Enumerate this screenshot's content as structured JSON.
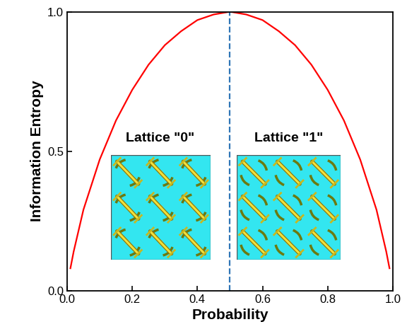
{
  "chart_data": {
    "type": "line",
    "x_label": "Probability",
    "y_label": "Information Entropy",
    "x": [
      0.01,
      0.02,
      0.05,
      0.1,
      0.15,
      0.2,
      0.25,
      0.3,
      0.35,
      0.4,
      0.45,
      0.5,
      0.55,
      0.6,
      0.65,
      0.7,
      0.75,
      0.8,
      0.85,
      0.9,
      0.95,
      0.98,
      0.99
    ],
    "series": [
      {
        "name": "Information Entropy",
        "color": "#ff0000",
        "line_style": "solid",
        "values": [
          0.08,
          0.14,
          0.29,
          0.47,
          0.61,
          0.72,
          0.81,
          0.88,
          0.93,
          0.97,
          0.99,
          1.0,
          0.99,
          0.97,
          0.93,
          0.88,
          0.81,
          0.72,
          0.61,
          0.47,
          0.29,
          0.14,
          0.08
        ]
      }
    ],
    "vline": {
      "x": 0.5,
      "color": "#2e75b6",
      "line_style": "dashed"
    },
    "annotations": [
      {
        "text": "Lattice \"0\""
      },
      {
        "text": "Lattice \"1\""
      }
    ],
    "xlim": [
      0,
      1
    ],
    "xticks": [
      {
        "value": 0,
        "label": "0.0"
      },
      {
        "value": 0.2,
        "label": "0.2"
      },
      {
        "value": 0.4,
        "label": "0.4"
      },
      {
        "value": 0.6,
        "label": "0.6"
      },
      {
        "value": 0.8,
        "label": "0.8"
      },
      {
        "value": 1,
        "label": "1.0"
      }
    ],
    "ylim": [
      0,
      1
    ],
    "yticks": [
      {
        "value": 0,
        "label": "0.0"
      },
      {
        "value": 0.5,
        "label": "0.5"
      },
      {
        "value": 1,
        "label": "1.0"
      }
    ],
    "grid": false
  }
}
